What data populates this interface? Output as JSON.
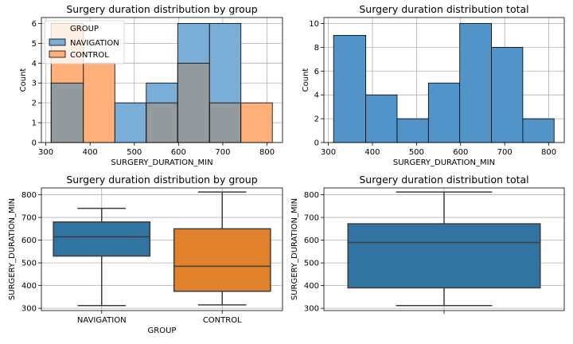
{
  "chart_data": [
    {
      "type": "bar",
      "subtype": "histogram-overlay",
      "title": "Surgery duration distribution by group",
      "xlabel": "SURGERY_DURATION_MIN",
      "ylabel": "Count",
      "xlim": [
        290,
        835
      ],
      "ylim": [
        0,
        6.3
      ],
      "xticks": [
        300,
        400,
        500,
        600,
        700,
        800
      ],
      "yticks": [
        0,
        1,
        2,
        3,
        4,
        5,
        6
      ],
      "bin_edges": [
        312,
        385,
        456,
        527,
        598,
        670,
        741,
        812
      ],
      "legend": {
        "title": "GROUP",
        "position": "upper-left"
      },
      "series": [
        {
          "name": "NAVIGATION",
          "color": "#7aaed6",
          "values": [
            3,
            0,
            2,
            3,
            6,
            6,
            0
          ]
        },
        {
          "name": "CONTROL",
          "color": "#ffb07a",
          "values": [
            6,
            4,
            0,
            2,
            4,
            2,
            2
          ]
        }
      ],
      "overlap_color": "#949b9e",
      "grid": true
    },
    {
      "type": "bar",
      "subtype": "histogram",
      "title": "Surgery duration distribution total",
      "xlabel": "SURGERY_DURATION_MIN",
      "ylabel": "Count",
      "xlim": [
        290,
        835
      ],
      "ylim": [
        0,
        10.5
      ],
      "xticks": [
        300,
        400,
        500,
        600,
        700,
        800
      ],
      "yticks": [
        0,
        2,
        4,
        6,
        8,
        10
      ],
      "bin_edges": [
        312,
        385,
        456,
        527,
        598,
        670,
        741,
        812
      ],
      "series": [
        {
          "color": "#5294c8",
          "values": [
            9,
            4,
            2,
            5,
            10,
            8,
            2
          ]
        }
      ],
      "grid": true
    },
    {
      "type": "box",
      "title": "Surgery duration distribution by group",
      "xlabel": "GROUP",
      "ylabel": "SURGERY_DURATION_MIN",
      "ylim": [
        290,
        830
      ],
      "yticks": [
        300,
        400,
        500,
        600,
        700,
        800
      ],
      "categories": [
        "NAVIGATION",
        "CONTROL"
      ],
      "boxes": [
        {
          "name": "NAVIGATION",
          "color": "#3274a1",
          "min": 312,
          "q1": 530,
          "median": 615,
          "q3": 680,
          "max": 740
        },
        {
          "name": "CONTROL",
          "color": "#e1812c",
          "min": 315,
          "q1": 375,
          "median": 485,
          "q3": 650,
          "max": 812
        }
      ],
      "grid": true
    },
    {
      "type": "box",
      "title": "Surgery duration distribution total",
      "xlabel": "",
      "ylabel": "SURGERY_DURATION_MIN",
      "ylim": [
        290,
        830
      ],
      "yticks": [
        300,
        400,
        500,
        600,
        700,
        800
      ],
      "categories": [
        ""
      ],
      "boxes": [
        {
          "name": "",
          "color": "#3274a1",
          "min": 312,
          "q1": 390,
          "median": 590,
          "q3": 672,
          "max": 812
        }
      ],
      "grid": true
    }
  ]
}
